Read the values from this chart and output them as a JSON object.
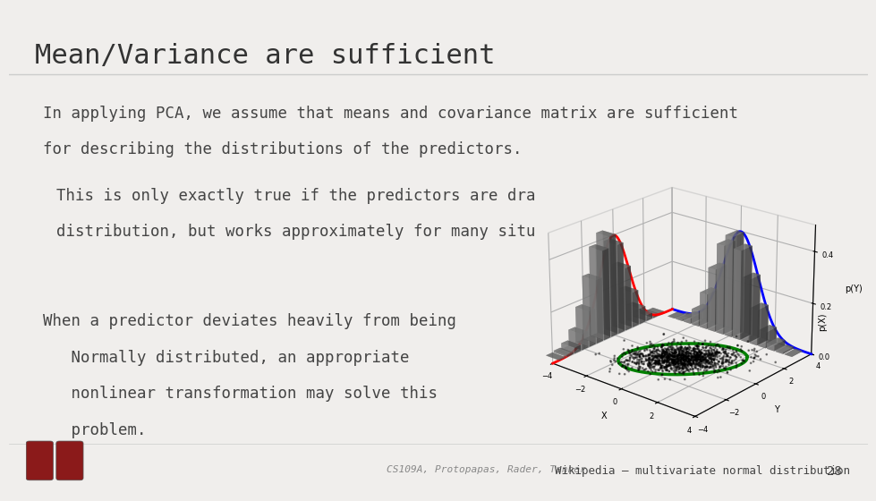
{
  "title": "Mean/Variance are sufficient",
  "bg_color": "#f0eeec",
  "title_color": "#333333",
  "title_fontsize": 22,
  "title_font": "monospace",
  "body_font": "monospace",
  "body_color": "#444444",
  "body_fontsize": 12.5,
  "para1_line1": "In applying PCA, we assume that means and covariance matrix are sufficient",
  "para1_line2": "for describing the distributions of the predictors.",
  "para2_line1": "This is only exactly true if the predictors are drawn from a multivariable Normal",
  "para2_line2": "distribution, but works approximately for many situations.",
  "para3_line1": "When a predictor deviates heavily from being",
  "para3_line2": "   Normally distributed, an appropriate",
  "para3_line3": "   nonlinear transformation may solve this",
  "para3_line4": "   problem.",
  "footer_left": "CS109A, Protopapas, Rader, Tanner",
  "footer_right": "Wikipedia – multivariate normal distribution",
  "page_num": "28",
  "footer_color": "#888888",
  "footer_fontsize": 8,
  "separator_color": "#cccccc"
}
